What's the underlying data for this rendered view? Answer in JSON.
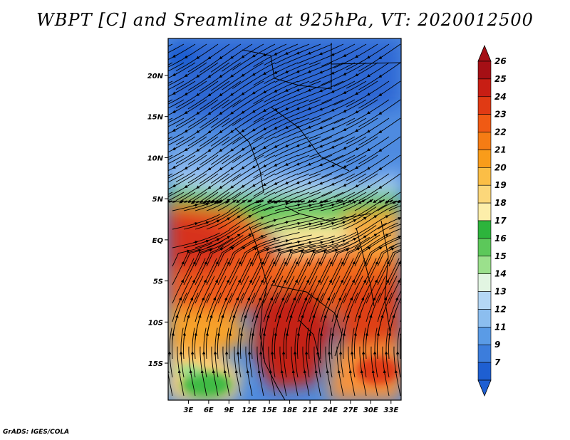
{
  "title": "WBPT [C] and Sreamline at 925hPa, VT: 2020012500",
  "credit": "GrADS: IGES/COLA",
  "lat_ticks": [
    {
      "label": "20N",
      "value": 20
    },
    {
      "label": "15N",
      "value": 15
    },
    {
      "label": "10N",
      "value": 10
    },
    {
      "label": "5N",
      "value": 5
    },
    {
      "label": "EQ",
      "value": 0
    },
    {
      "label": "5S",
      "value": -5
    },
    {
      "label": "10S",
      "value": -10
    },
    {
      "label": "15S",
      "value": -15
    }
  ],
  "lon_ticks": [
    {
      "label": "3E",
      "value": 3
    },
    {
      "label": "6E",
      "value": 6
    },
    {
      "label": "9E",
      "value": 9
    },
    {
      "label": "12E",
      "value": 12
    },
    {
      "label": "15E",
      "value": 15
    },
    {
      "label": "18E",
      "value": 18
    },
    {
      "label": "21E",
      "value": 21
    },
    {
      "label": "24E",
      "value": 24
    },
    {
      "label": "27E",
      "value": 27
    },
    {
      "label": "30E",
      "value": 30
    },
    {
      "label": "33E",
      "value": 33
    }
  ],
  "colorbar": {
    "labels": [
      "26",
      "25",
      "24",
      "23",
      "22",
      "21",
      "20",
      "19",
      "18",
      "17",
      "16",
      "15",
      "14",
      "13",
      "12",
      "11",
      "9",
      "7"
    ],
    "colors": [
      "#a50f15",
      "#c81e14",
      "#e03a14",
      "#f05a14",
      "#f57c14",
      "#f99c1a",
      "#fbbe46",
      "#fcd77a",
      "#fdeeaa",
      "#2db43c",
      "#5cc85a",
      "#9be08c",
      "#e2f5e2",
      "#b4d7f5",
      "#8cbeef",
      "#5a9be6",
      "#3c7ddc",
      "#1e5fd2"
    ]
  },
  "map": {
    "lon_range": [
      0,
      34.5
    ],
    "lat_range": [
      -19.5,
      24.5
    ]
  }
}
